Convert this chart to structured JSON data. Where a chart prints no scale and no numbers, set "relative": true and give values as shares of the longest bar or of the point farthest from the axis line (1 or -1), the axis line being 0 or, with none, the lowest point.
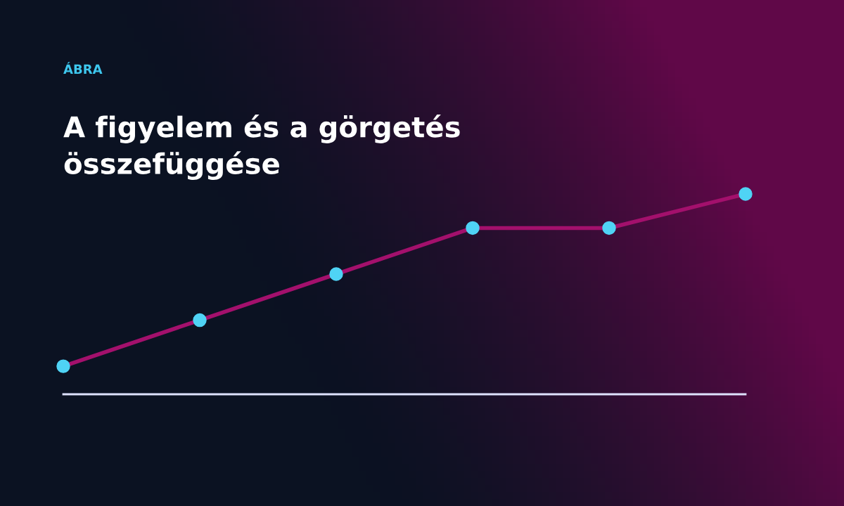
{
  "chart_data": {
    "type": "line",
    "title": "A figyelem és a görgetés\nösszefüggése",
    "annotations": [
      "ÁBRA"
    ],
    "categories": [
      null,
      null,
      null,
      null,
      null,
      null
    ],
    "relative": true,
    "series": [
      {
        "color": "#a3106c",
        "values": [
          0.14,
          0.37,
          0.6,
          0.83,
          0.83,
          1.0
        ]
      }
    ],
    "marker": "circle",
    "line_style": "solid",
    "grid": false,
    "legend": false
  }
}
